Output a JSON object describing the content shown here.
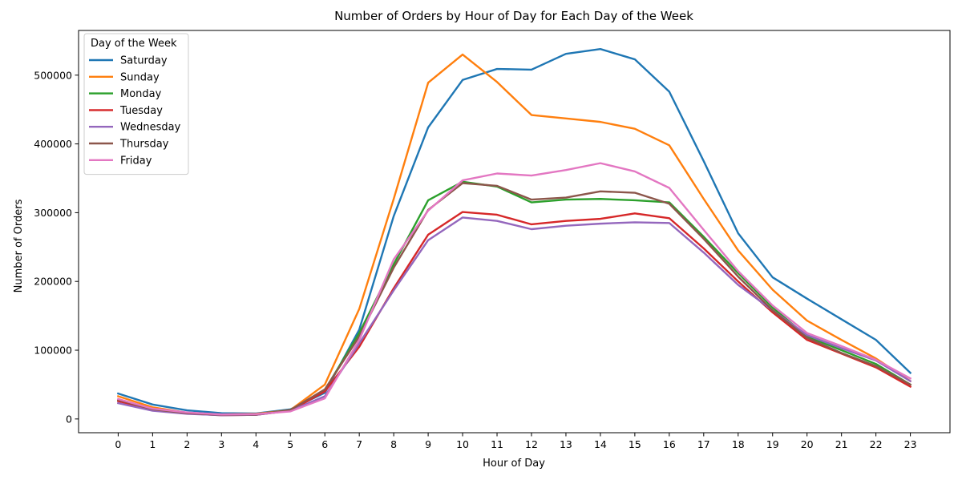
{
  "chart_data": {
    "type": "line",
    "title": "Number of Orders by Hour of Day for Each Day of the Week",
    "xlabel": "Hour of Day",
    "ylabel": "Number of Orders",
    "x": [
      0,
      1,
      2,
      3,
      4,
      5,
      6,
      7,
      8,
      9,
      10,
      11,
      12,
      13,
      14,
      15,
      16,
      17,
      18,
      19,
      20,
      21,
      22,
      23
    ],
    "x_tick_labels": [
      "0",
      "1",
      "2",
      "3",
      "4",
      "5",
      "6",
      "7",
      "8",
      "9",
      "10",
      "11",
      "12",
      "13",
      "14",
      "15",
      "16",
      "17",
      "18",
      "19",
      "20",
      "21",
      "22",
      "23"
    ],
    "xlim": [
      -1.15,
      24.15
    ],
    "ylim": [
      -20000,
      565000
    ],
    "y_ticks": [
      0,
      100000,
      200000,
      300000,
      400000,
      500000
    ],
    "y_tick_labels": [
      "0",
      "100000",
      "200000",
      "300000",
      "400000",
      "500000"
    ],
    "grid": false,
    "legend": {
      "title": "Day of the Week",
      "placement": "top-left"
    },
    "series": [
      {
        "name": "Saturday",
        "color": "#1f77b4",
        "values": [
          37000,
          21000,
          12500,
          8500,
          8000,
          14000,
          38000,
          130000,
          295000,
          424000,
          493000,
          509000,
          508000,
          531000,
          538000,
          523000,
          476000,
          375000,
          270000,
          206000,
          175000,
          145000,
          115000,
          67000
        ]
      },
      {
        "name": "Sunday",
        "color": "#ff7f0e",
        "values": [
          33000,
          17000,
          9000,
          6500,
          7500,
          13000,
          50000,
          160000,
          320000,
          489000,
          530000,
          490000,
          442000,
          437000,
          432000,
          422000,
          398000,
          320000,
          245000,
          188000,
          143000,
          115000,
          88000,
          55000
        ]
      },
      {
        "name": "Monday",
        "color": "#2ca02c",
        "values": [
          27000,
          14000,
          8500,
          6000,
          6500,
          13000,
          42000,
          125000,
          225000,
          318000,
          345000,
          338000,
          315000,
          319000,
          320000,
          318000,
          315000,
          265000,
          212000,
          162000,
          120000,
          100000,
          80000,
          50000
        ]
      },
      {
        "name": "Tuesday",
        "color": "#d62728",
        "values": [
          26000,
          13000,
          8000,
          5500,
          6000,
          12000,
          40000,
          105000,
          190000,
          268000,
          301000,
          297000,
          283000,
          288000,
          291000,
          299000,
          292000,
          248000,
          200000,
          155000,
          115000,
          95000,
          75000,
          47000
        ]
      },
      {
        "name": "Wednesday",
        "color": "#9467bd",
        "values": [
          23000,
          12000,
          7500,
          5500,
          6000,
          12000,
          33000,
          110000,
          187000,
          260000,
          293000,
          288000,
          276000,
          281000,
          284000,
          286000,
          285000,
          242000,
          195000,
          158000,
          122000,
          103000,
          85000,
          55000
        ]
      },
      {
        "name": "Thursday",
        "color": "#8c564b",
        "values": [
          28000,
          14000,
          8500,
          6000,
          6500,
          13000,
          43000,
          120000,
          220000,
          304000,
          343000,
          339000,
          319000,
          322000,
          331000,
          329000,
          313000,
          262000,
          207000,
          158000,
          118000,
          96000,
          77000,
          50000
        ]
      },
      {
        "name": "Friday",
        "color": "#e377c2",
        "values": [
          29000,
          15000,
          9500,
          6500,
          7000,
          11000,
          30000,
          115000,
          232000,
          303000,
          347000,
          357000,
          354000,
          362000,
          372000,
          360000,
          336000,
          275000,
          215000,
          165000,
          125000,
          106000,
          86000,
          59000
        ]
      }
    ]
  }
}
